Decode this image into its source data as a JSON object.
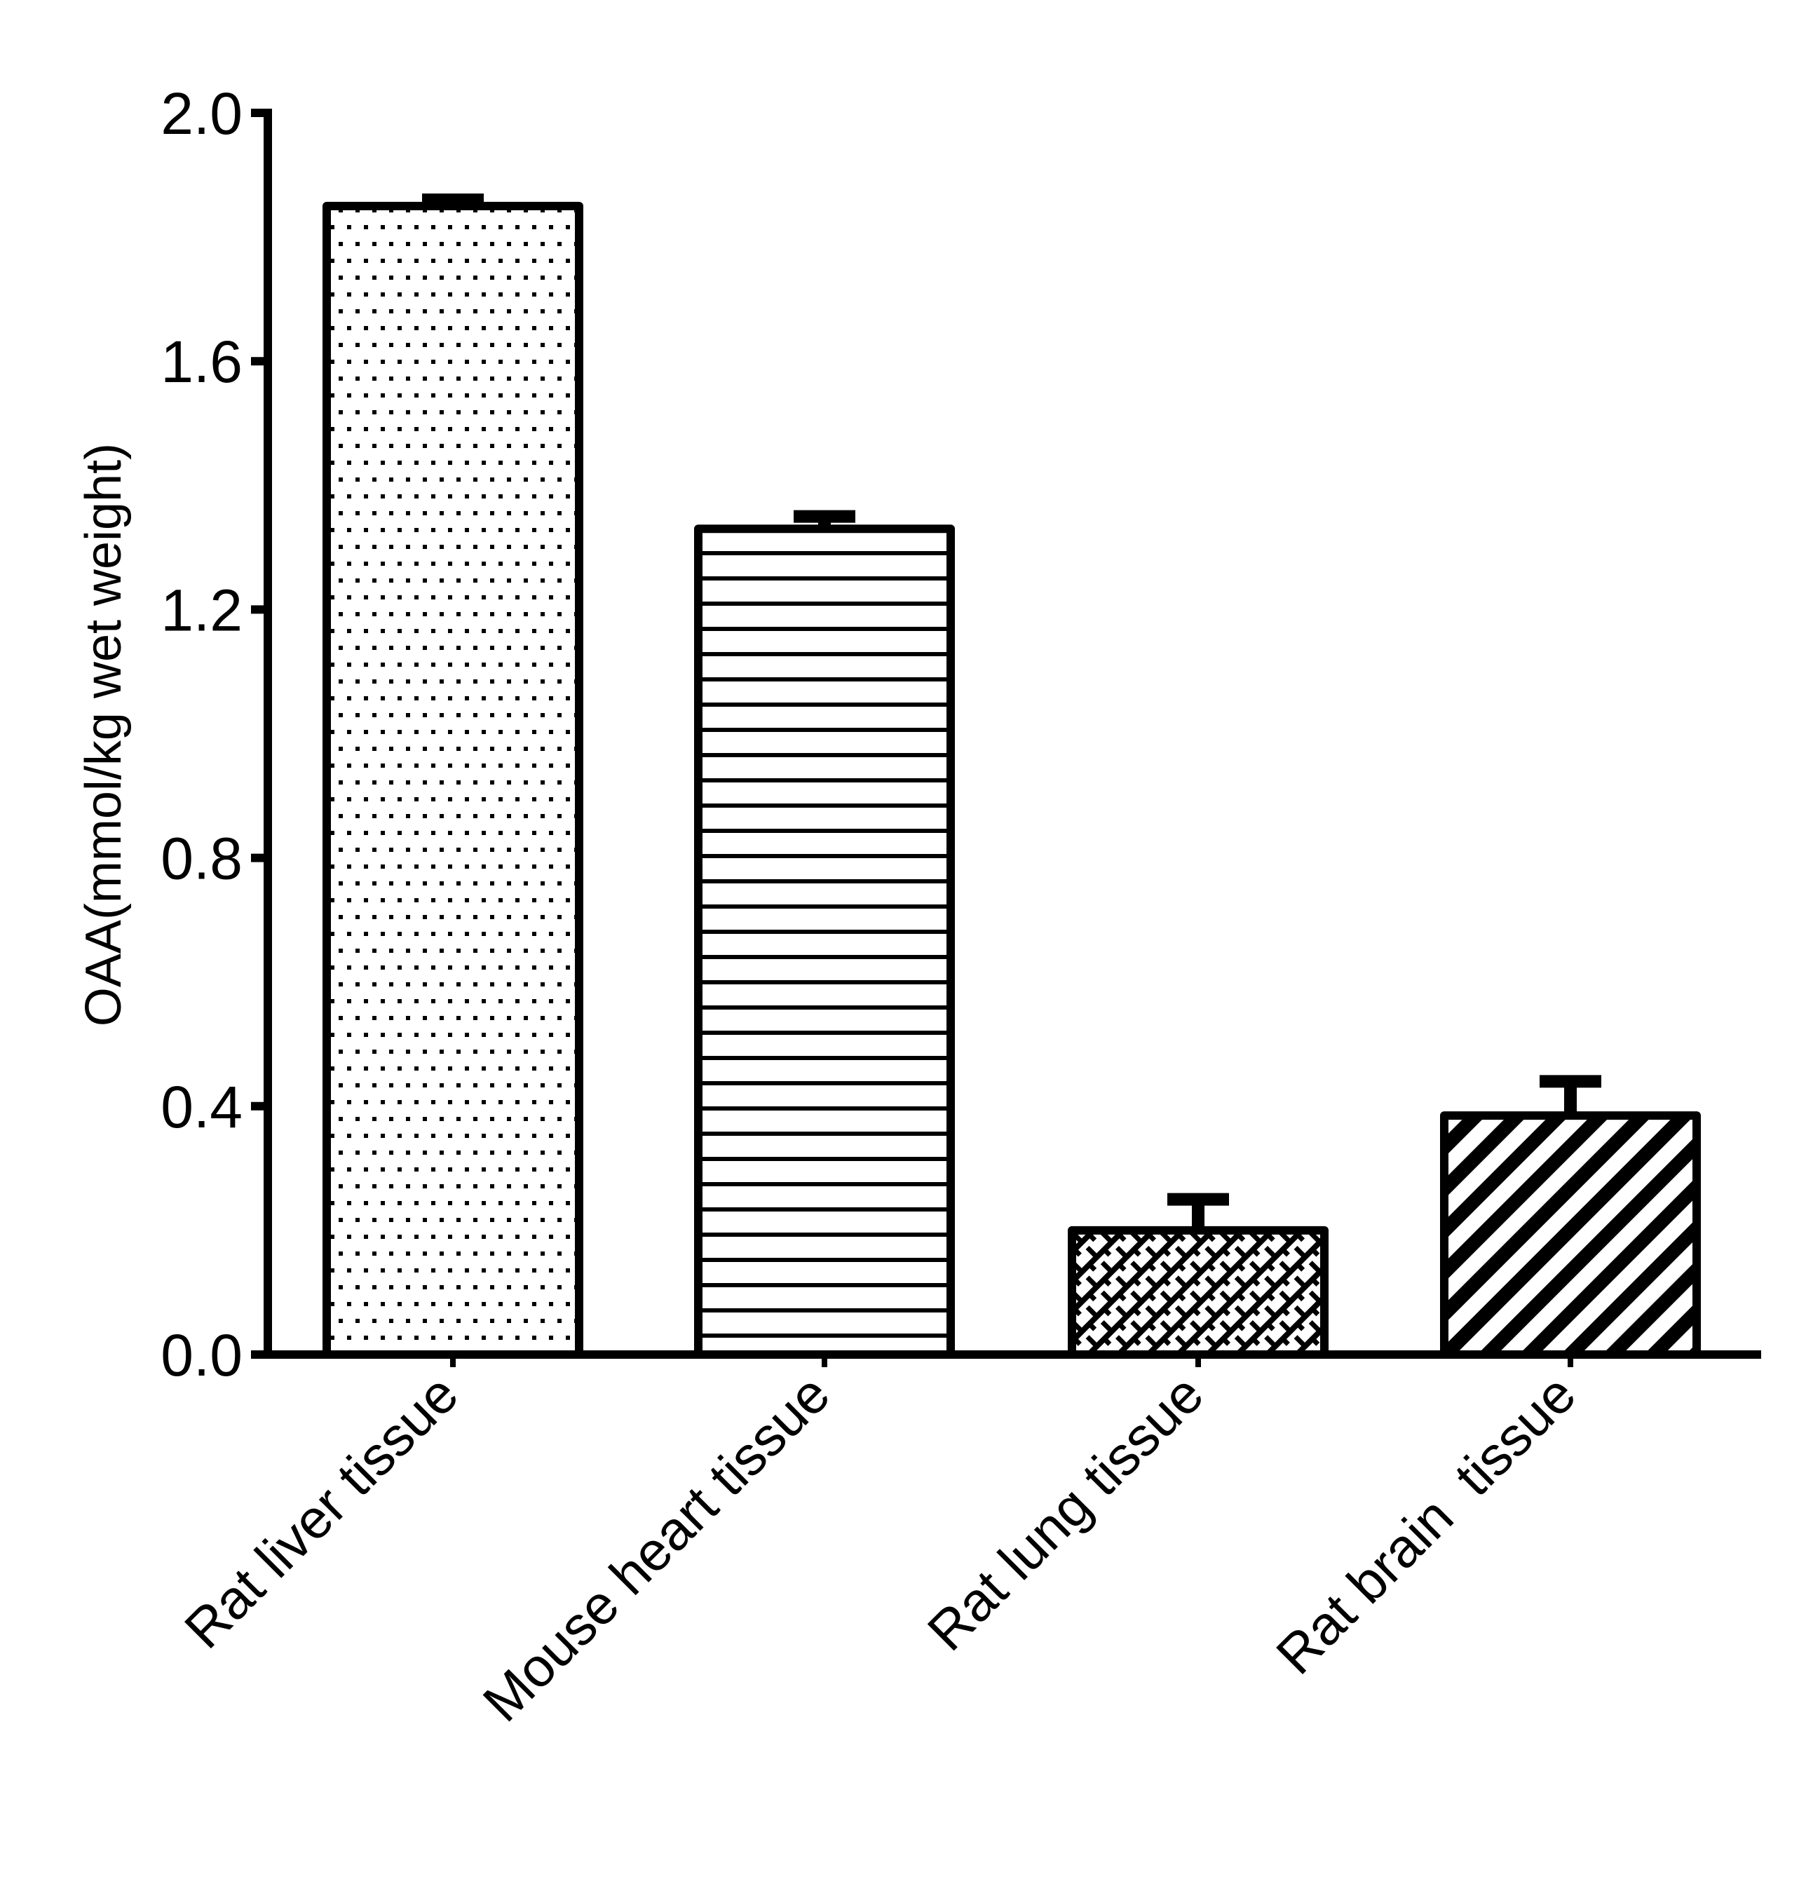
{
  "chart_data": {
    "type": "bar",
    "title": "",
    "xlabel": "",
    "ylabel": "OAA(mmol/kg wet weight)",
    "categories": [
      "Rat liver tissue",
      "Mouse heart tissue",
      "Rat lung tissue",
      "Rat brain  tissue"
    ],
    "values": [
      1.85,
      1.33,
      0.2,
      0.385
    ],
    "error_bars": [
      0.01,
      0.02,
      0.05,
      0.055
    ],
    "error_type": "upper only (SEM/SD)",
    "ylim": [
      0,
      2.0
    ],
    "yticks": [
      0.0,
      0.4,
      0.8,
      1.2,
      1.6,
      2.0
    ],
    "ytick_labels": [
      "0.0",
      "0.4",
      "0.8",
      "1.2",
      "1.6",
      "2.0"
    ],
    "grid": false,
    "legend": null,
    "bar_patterns": [
      "dots",
      "horizontal-lines",
      "diagonal-brick-crosshatch",
      "diagonal-stripes"
    ],
    "colors": {
      "bar_edge": "#000000",
      "bar_fill": "#ffffff",
      "pattern": "#000000",
      "axis": "#000000",
      "background": "#ffffff"
    }
  }
}
